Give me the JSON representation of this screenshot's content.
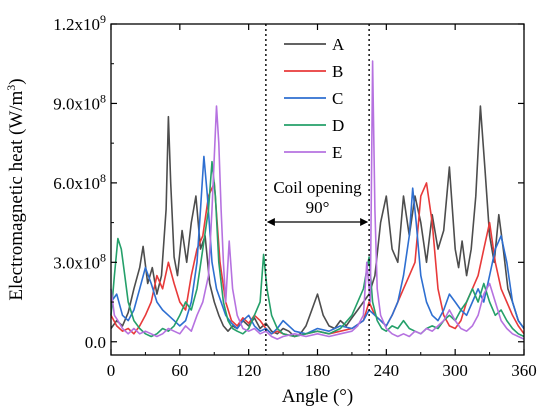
{
  "chart_data": {
    "type": "line",
    "title": "",
    "xlabel": "Angle (°)",
    "ylabel": "Electromagnetic heat (W/m³)",
    "ylabel_base": "Electromagnetic heat (W/m",
    "ylabel_sup": "3",
    "ylabel_close": ")",
    "xlim": [
      0,
      360
    ],
    "ylim": [
      -50000000.0,
      1200000000.0
    ],
    "xticks": [
      0,
      60,
      120,
      180,
      240,
      300,
      360
    ],
    "xtick_labels": [
      "0",
      "60",
      "120",
      "180",
      "240",
      "300",
      "360"
    ],
    "yticks": [
      0,
      300000000.0,
      600000000.0,
      900000000.0,
      1200000000.0
    ],
    "ytick_labels": [
      {
        "mant": "0.0",
        "exp": ""
      },
      {
        "mant": "3.0x10",
        "exp": "8"
      },
      {
        "mant": "6.0x10",
        "exp": "8"
      },
      {
        "mant": "9.0x10",
        "exp": "8"
      },
      {
        "mant": "1.2x10",
        "exp": "9"
      }
    ],
    "grid": false,
    "legend_position": "top-right",
    "annotations": {
      "coil_opening_label": "Coil opening",
      "coil_opening_angle": "90°",
      "coil_lines_x": [
        135,
        225
      ]
    },
    "series": [
      {
        "name": "A",
        "color": "#4d4d4d",
        "x": [
          0,
          5,
          10,
          15,
          20,
          25,
          28,
          32,
          36,
          40,
          44,
          48,
          50,
          52,
          55,
          58,
          62,
          66,
          70,
          74,
          78,
          82,
          86,
          90,
          94,
          98,
          102,
          106,
          110,
          115,
          120,
          125,
          130,
          135,
          140,
          145,
          150,
          155,
          160,
          165,
          170,
          175,
          180,
          185,
          190,
          195,
          200,
          205,
          210,
          215,
          220,
          225,
          230,
          235,
          240,
          245,
          250,
          255,
          260,
          265,
          270,
          275,
          280,
          285,
          290,
          295,
          300,
          303,
          306,
          310,
          314,
          318,
          322,
          326,
          330,
          334,
          338,
          342,
          346,
          350,
          355,
          360
        ],
        "y": [
          50000000.0,
          80000000.0,
          60000000.0,
          110000000.0,
          200000000.0,
          280000000.0,
          360000000.0,
          220000000.0,
          280000000.0,
          180000000.0,
          250000000.0,
          500000000.0,
          850000000.0,
          600000000.0,
          320000000.0,
          250000000.0,
          420000000.0,
          300000000.0,
          450000000.0,
          550000000.0,
          350000000.0,
          400000000.0,
          220000000.0,
          150000000.0,
          100000000.0,
          60000000.0,
          40000000.0,
          60000000.0,
          50000000.0,
          80000000.0,
          60000000.0,
          90000000.0,
          50000000.0,
          70000000.0,
          40000000.0,
          30000000.0,
          50000000.0,
          40000000.0,
          20000000.0,
          30000000.0,
          60000000.0,
          120000000.0,
          180000000.0,
          100000000.0,
          60000000.0,
          50000000.0,
          80000000.0,
          60000000.0,
          90000000.0,
          120000000.0,
          150000000.0,
          180000000.0,
          250000000.0,
          450000000.0,
          550000000.0,
          350000000.0,
          300000000.0,
          550000000.0,
          400000000.0,
          550000000.0,
          450000000.0,
          300000000.0,
          480000000.0,
          350000000.0,
          420000000.0,
          660000000.0,
          350000000.0,
          280000000.0,
          380000000.0,
          250000000.0,
          350000000.0,
          550000000.0,
          890000000.0,
          650000000.0,
          400000000.0,
          300000000.0,
          480000000.0,
          350000000.0,
          200000000.0,
          150000000.0,
          80000000.0,
          50000000.0
        ]
      },
      {
        "name": "B",
        "color": "#e83a3a",
        "x": [
          0,
          5,
          10,
          15,
          20,
          25,
          30,
          35,
          40,
          45,
          50,
          55,
          60,
          65,
          70,
          75,
          80,
          85,
          90,
          95,
          100,
          105,
          110,
          115,
          120,
          125,
          130,
          135,
          140,
          145,
          150,
          160,
          170,
          180,
          190,
          200,
          210,
          220,
          225,
          230,
          235,
          240,
          245,
          250,
          255,
          260,
          265,
          270,
          275,
          280,
          285,
          290,
          295,
          300,
          305,
          310,
          315,
          320,
          325,
          330,
          335,
          340,
          345,
          350,
          355,
          360
        ],
        "y": [
          100000000.0,
          60000000.0,
          40000000.0,
          50000000.0,
          30000000.0,
          60000000.0,
          100000000.0,
          150000000.0,
          250000000.0,
          200000000.0,
          300000000.0,
          220000000.0,
          150000000.0,
          120000000.0,
          250000000.0,
          350000000.0,
          400000000.0,
          550000000.0,
          600000000.0,
          300000000.0,
          150000000.0,
          80000000.0,
          60000000.0,
          90000000.0,
          70000000.0,
          100000000.0,
          80000000.0,
          50000000.0,
          30000000.0,
          40000000.0,
          30000000.0,
          20000000.0,
          30000000.0,
          40000000.0,
          30000000.0,
          40000000.0,
          50000000.0,
          80000000.0,
          150000000.0,
          100000000.0,
          80000000.0,
          60000000.0,
          100000000.0,
          150000000.0,
          200000000.0,
          250000000.0,
          300000000.0,
          550000000.0,
          600000000.0,
          450000000.0,
          200000000.0,
          100000000.0,
          60000000.0,
          50000000.0,
          80000000.0,
          150000000.0,
          200000000.0,
          250000000.0,
          350000000.0,
          450000000.0,
          300000000.0,
          200000000.0,
          150000000.0,
          100000000.0,
          60000000.0,
          30000000.0
        ]
      },
      {
        "name": "C",
        "color": "#2e6fd1",
        "x": [
          0,
          5,
          10,
          15,
          20,
          25,
          30,
          35,
          40,
          45,
          50,
          55,
          60,
          65,
          70,
          75,
          78,
          81,
          84,
          88,
          92,
          96,
          100,
          105,
          110,
          115,
          120,
          125,
          130,
          135,
          140,
          145,
          150,
          160,
          170,
          180,
          190,
          200,
          210,
          220,
          225,
          230,
          235,
          240,
          245,
          250,
          255,
          260,
          263,
          266,
          270,
          275,
          280,
          285,
          290,
          295,
          300,
          305,
          310,
          315,
          320,
          325,
          330,
          335,
          340,
          345,
          350,
          355,
          360
        ],
        "y": [
          150000000.0,
          180000000.0,
          100000000.0,
          80000000.0,
          120000000.0,
          200000000.0,
          280000000.0,
          220000000.0,
          150000000.0,
          120000000.0,
          100000000.0,
          80000000.0,
          60000000.0,
          80000000.0,
          150000000.0,
          300000000.0,
          500000000.0,
          700000000.0,
          550000000.0,
          300000000.0,
          200000000.0,
          150000000.0,
          100000000.0,
          70000000.0,
          50000000.0,
          80000000.0,
          100000000.0,
          60000000.0,
          40000000.0,
          50000000.0,
          30000000.0,
          50000000.0,
          80000000.0,
          40000000.0,
          30000000.0,
          50000000.0,
          40000000.0,
          60000000.0,
          50000000.0,
          80000000.0,
          120000000.0,
          100000000.0,
          80000000.0,
          60000000.0,
          100000000.0,
          150000000.0,
          250000000.0,
          400000000.0,
          580000000.0,
          450000000.0,
          250000000.0,
          150000000.0,
          100000000.0,
          80000000.0,
          120000000.0,
          180000000.0,
          150000000.0,
          120000000.0,
          100000000.0,
          150000000.0,
          200000000.0,
          150000000.0,
          250000000.0,
          350000000.0,
          400000000.0,
          300000000.0,
          150000000.0,
          80000000.0,
          50000000.0
        ]
      },
      {
        "name": "D",
        "color": "#25a06a",
        "x": [
          0,
          3,
          6,
          9,
          12,
          15,
          20,
          25,
          30,
          35,
          40,
          45,
          50,
          55,
          60,
          65,
          70,
          75,
          80,
          85,
          88,
          91,
          94,
          98,
          102,
          106,
          110,
          115,
          120,
          125,
          130,
          133,
          136,
          140,
          145,
          150,
          160,
          170,
          180,
          190,
          200,
          210,
          220,
          225,
          228,
          232,
          236,
          240,
          245,
          250,
          255,
          260,
          265,
          270,
          275,
          280,
          285,
          290,
          295,
          300,
          305,
          310,
          315,
          320,
          325,
          330,
          335,
          340,
          345,
          350,
          355,
          360
        ],
        "y": [
          100000000.0,
          250000000.0,
          390000000.0,
          350000000.0,
          250000000.0,
          150000000.0,
          80000000.0,
          50000000.0,
          30000000.0,
          20000000.0,
          30000000.0,
          50000000.0,
          40000000.0,
          60000000.0,
          100000000.0,
          150000000.0,
          120000000.0,
          200000000.0,
          350000000.0,
          500000000.0,
          680000000.0,
          550000000.0,
          300000000.0,
          150000000.0,
          80000000.0,
          50000000.0,
          40000000.0,
          30000000.0,
          50000000.0,
          100000000.0,
          150000000.0,
          330000000.0,
          200000000.0,
          100000000.0,
          50000000.0,
          30000000.0,
          20000000.0,
          30000000.0,
          40000000.0,
          30000000.0,
          50000000.0,
          100000000.0,
          200000000.0,
          320000000.0,
          150000000.0,
          80000000.0,
          50000000.0,
          40000000.0,
          60000000.0,
          50000000.0,
          80000000.0,
          50000000.0,
          40000000.0,
          30000000.0,
          50000000.0,
          60000000.0,
          50000000.0,
          80000000.0,
          100000000.0,
          80000000.0,
          120000000.0,
          150000000.0,
          200000000.0,
          150000000.0,
          220000000.0,
          150000000.0,
          100000000.0,
          120000000.0,
          80000000.0,
          50000000.0,
          30000000.0,
          20000000.0
        ]
      },
      {
        "name": "E",
        "color": "#b672e0",
        "x": [
          0,
          3,
          6,
          10,
          15,
          20,
          25,
          30,
          35,
          40,
          45,
          50,
          55,
          60,
          65,
          70,
          75,
          80,
          85,
          88,
          90,
          92,
          94,
          96,
          98,
          100,
          103,
          106,
          110,
          115,
          120,
          125,
          130,
          135,
          140,
          145,
          150,
          160,
          170,
          180,
          190,
          200,
          210,
          215,
          220,
          223,
          226,
          228,
          230,
          232,
          235,
          240,
          245,
          250,
          255,
          260,
          265,
          270,
          275,
          280,
          285,
          290,
          295,
          300,
          305,
          310,
          315,
          320,
          325,
          330,
          335,
          340,
          345,
          350,
          355,
          360
        ],
        "y": [
          200000000.0,
          100000000.0,
          80000000.0,
          50000000.0,
          30000000.0,
          50000000.0,
          30000000.0,
          40000000.0,
          30000000.0,
          20000000.0,
          30000000.0,
          50000000.0,
          40000000.0,
          30000000.0,
          60000000.0,
          40000000.0,
          100000000.0,
          150000000.0,
          250000000.0,
          500000000.0,
          700000000.0,
          890000000.0,
          750000000.0,
          500000000.0,
          300000000.0,
          150000000.0,
          380000000.0,
          200000000.0,
          100000000.0,
          50000000.0,
          40000000.0,
          50000000.0,
          30000000.0,
          40000000.0,
          20000000.0,
          10000000.0,
          20000000.0,
          30000000.0,
          20000000.0,
          30000000.0,
          20000000.0,
          30000000.0,
          40000000.0,
          60000000.0,
          100000000.0,
          300000000.0,
          150000000.0,
          1060000000.0,
          500000000.0,
          200000000.0,
          100000000.0,
          50000000.0,
          30000000.0,
          20000000.0,
          30000000.0,
          20000000.0,
          40000000.0,
          30000000.0,
          50000000.0,
          40000000.0,
          60000000.0,
          80000000.0,
          120000000.0,
          80000000.0,
          50000000.0,
          40000000.0,
          60000000.0,
          100000000.0,
          180000000.0,
          220000000.0,
          150000000.0,
          80000000.0,
          50000000.0,
          30000000.0,
          20000000.0,
          10000000.0
        ]
      }
    ]
  }
}
